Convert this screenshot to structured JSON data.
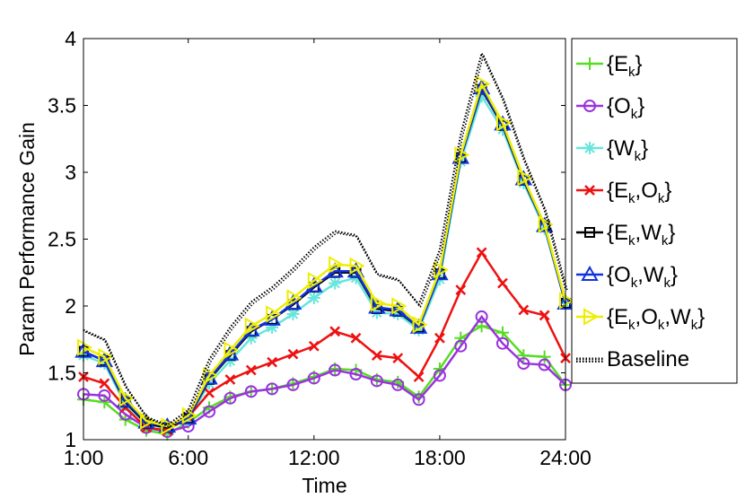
{
  "chart_data": {
    "type": "line",
    "x": [
      1,
      2,
      3,
      4,
      5,
      6,
      7,
      8,
      9,
      10,
      11,
      12,
      13,
      14,
      15,
      16,
      17,
      18,
      19,
      20,
      21,
      22,
      23,
      24
    ],
    "xticks": [
      1,
      6,
      12,
      18,
      24
    ],
    "xtick_labels": [
      "1:00",
      "6:00",
      "12:00",
      "18:00",
      "24:00"
    ],
    "xlim": [
      1,
      24
    ],
    "ylim": [
      1,
      4
    ],
    "yticks": [
      1,
      1.5,
      2,
      2.5,
      3,
      3.5,
      4
    ],
    "ytick_labels": [
      "1",
      "1.5",
      "2",
      "2.5",
      "3",
      "3.5",
      "4"
    ],
    "xlabel": "Time",
    "ylabel": "Param Performance Gain",
    "grid": false,
    "legend_position": "outside-right",
    "series": [
      {
        "key": "E",
        "name": "{E_k}",
        "name_parts": [
          [
            "{E",
            "k",
            "}"
          ]
        ],
        "color": "#55dd22",
        "marker": "plus",
        "values": [
          1.3,
          1.28,
          1.15,
          1.07,
          1.04,
          1.13,
          1.24,
          1.32,
          1.36,
          1.38,
          1.42,
          1.47,
          1.53,
          1.52,
          1.45,
          1.43,
          1.32,
          1.53,
          1.76,
          1.85,
          1.8,
          1.63,
          1.62,
          1.41
        ]
      },
      {
        "key": "O",
        "name": "{O_k}",
        "name_parts": [
          [
            "{O",
            "k",
            "}"
          ]
        ],
        "color": "#9933dd",
        "marker": "circle",
        "values": [
          1.34,
          1.33,
          1.19,
          1.09,
          1.06,
          1.1,
          1.21,
          1.31,
          1.36,
          1.38,
          1.41,
          1.46,
          1.52,
          1.49,
          1.44,
          1.41,
          1.3,
          1.48,
          1.7,
          1.92,
          1.72,
          1.57,
          1.56,
          1.41
        ]
      },
      {
        "key": "W",
        "name": "{W_k}",
        "name_parts": [
          [
            "{W",
            "k",
            "}"
          ]
        ],
        "color": "#66e6dd",
        "marker": "asterisk",
        "values": [
          1.63,
          1.57,
          1.26,
          1.12,
          1.08,
          1.15,
          1.42,
          1.59,
          1.76,
          1.84,
          1.94,
          2.06,
          2.17,
          2.21,
          1.95,
          1.94,
          1.82,
          2.2,
          3.08,
          3.57,
          3.32,
          2.92,
          2.58,
          2.02
        ]
      },
      {
        "key": "EO",
        "name": "{E_k,O_k}",
        "name_parts": [
          [
            "{E",
            "k",
            ","
          ],
          [
            "O",
            "k",
            "}"
          ]
        ],
        "color": "#ee1111",
        "marker": "x",
        "values": [
          1.47,
          1.42,
          1.24,
          1.09,
          1.07,
          1.17,
          1.35,
          1.45,
          1.52,
          1.58,
          1.64,
          1.7,
          1.81,
          1.76,
          1.63,
          1.61,
          1.47,
          1.76,
          2.12,
          2.4,
          2.17,
          1.97,
          1.93,
          1.61
        ]
      },
      {
        "key": "EW",
        "name": "{E_k,W_k}",
        "name_parts": [
          [
            "{E",
            "k",
            ","
          ],
          [
            "W",
            "k",
            "}"
          ]
        ],
        "color": "#000000",
        "marker": "square",
        "values": [
          1.66,
          1.59,
          1.28,
          1.12,
          1.09,
          1.16,
          1.45,
          1.63,
          1.81,
          1.9,
          2.01,
          2.14,
          2.25,
          2.25,
          1.98,
          1.96,
          1.84,
          2.24,
          3.11,
          3.62,
          3.35,
          2.94,
          2.6,
          2.02
        ]
      },
      {
        "key": "OW",
        "name": "{O_k,W_k}",
        "name_parts": [
          [
            "{O",
            "k",
            ","
          ],
          [
            "W",
            "k",
            "}"
          ]
        ],
        "color": "#1133dd",
        "marker": "triangle-up",
        "values": [
          1.66,
          1.59,
          1.29,
          1.13,
          1.1,
          1.16,
          1.46,
          1.64,
          1.82,
          1.9,
          2.02,
          2.15,
          2.26,
          2.26,
          1.99,
          1.97,
          1.84,
          2.24,
          3.11,
          3.63,
          3.36,
          2.95,
          2.6,
          2.02
        ]
      },
      {
        "key": "EOW",
        "name": "{E_k,O_k,W_k}",
        "name_parts": [
          [
            "{E",
            "k",
            ","
          ],
          [
            "O",
            "k",
            ","
          ],
          [
            "W",
            "k",
            "}"
          ]
        ],
        "color": "#eeee00",
        "marker": "triangle-right",
        "values": [
          1.69,
          1.62,
          1.31,
          1.14,
          1.1,
          1.18,
          1.48,
          1.67,
          1.85,
          1.94,
          2.06,
          2.19,
          2.31,
          2.3,
          2.02,
          2.0,
          1.86,
          2.27,
          3.13,
          3.66,
          3.37,
          2.96,
          2.61,
          2.04
        ]
      },
      {
        "key": "B",
        "name": "Baseline",
        "name_parts": [
          [
            "Baseline",
            "",
            ""
          ]
        ],
        "color": "#000000",
        "marker": "none",
        "dotted": true,
        "values": [
          1.82,
          1.75,
          1.4,
          1.17,
          1.11,
          1.22,
          1.6,
          1.84,
          2.03,
          2.14,
          2.28,
          2.44,
          2.56,
          2.53,
          2.24,
          2.2,
          2.01,
          2.42,
          3.28,
          3.89,
          3.55,
          3.1,
          2.72,
          2.13
        ]
      }
    ]
  }
}
